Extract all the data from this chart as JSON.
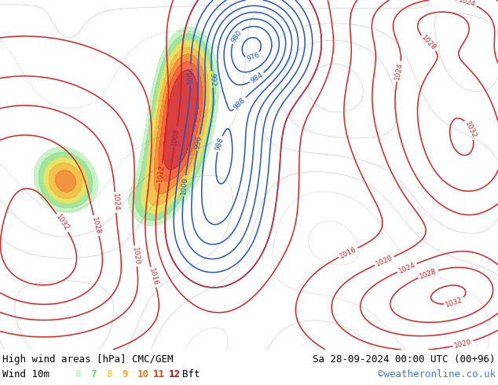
{
  "title_left": "High wind areas [hPa] CMC/GEM",
  "title_right": "Sa 28-09-2024 00:00 UTC (00+96)",
  "subtitle_left": "Wind 10m",
  "subtitle_right": "©weatheronline.co.uk",
  "bft_nums": [
    "6",
    "7",
    "8",
    "9",
    "10",
    "11",
    "12"
  ],
  "bft_colors": [
    "#aaffaa",
    "#55dd55",
    "#dddd22",
    "#ffaa00",
    "#ff7700",
    "#ff3300",
    "#cc0000"
  ],
  "bottom_bar_color": "#ffffff",
  "map_bg": "#d4e8c2",
  "text_color": "#000000",
  "font_size_title": 9,
  "font_size_sub": 9,
  "blue_contour_color": "#2255cc",
  "red_contour_color": "#dd2222",
  "black_contour_color": "#222222",
  "wind_fill_light": "#b0e8b0",
  "wind_fill_mid": "#80d880",
  "isobar_linewidth": 1.1
}
